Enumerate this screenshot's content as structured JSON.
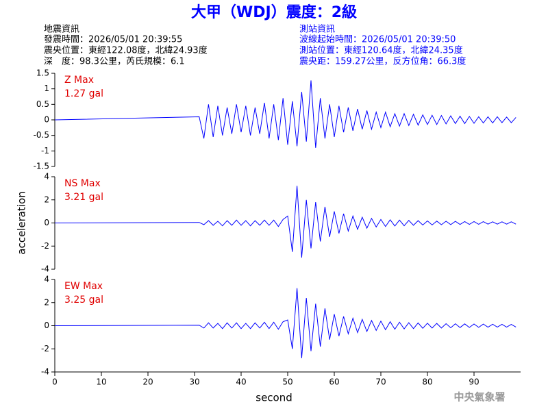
{
  "header": {
    "title": "大甲（WDJ）震度：2級",
    "left": [
      "地震資訊",
      "發震時間：2026/05/01 20:39:55",
      "震央位置：東經122.08度，北緯24.93度",
      "深　度：98.3公里，芮氏規模：6.1"
    ],
    "right": [
      "測站資訊",
      "波線起始時間：2026/05/01 20:39:50",
      "測站位置：東經120.64度，北緯24.35度",
      "震央距：159.27公里，反方位角：66.3度"
    ],
    "footer": "中央氣象署"
  },
  "chart_data": [
    {
      "type": "line",
      "annotation": "Z Max",
      "max_label": "1.27 gal",
      "color": "#0000ff",
      "ylim": [
        -1.5,
        1.5
      ],
      "yticks": [
        1.5,
        1,
        0.5,
        0,
        -0.5,
        -1,
        -1.5
      ],
      "xlim": [
        0,
        100
      ],
      "x": [
        0,
        31,
        32,
        33,
        34,
        35,
        36,
        37,
        38,
        39,
        40,
        41,
        42,
        43,
        44,
        45,
        46,
        47,
        48,
        49,
        50,
        51,
        52,
        53,
        54,
        55,
        56,
        57,
        58,
        59,
        60,
        61,
        62,
        63,
        64,
        65,
        66,
        67,
        68,
        69,
        70,
        71,
        72,
        73,
        74,
        75,
        76,
        77,
        78,
        79,
        80,
        81,
        82,
        83,
        84,
        85,
        86,
        87,
        88,
        89,
        90,
        91,
        92,
        93,
        94,
        95,
        96,
        97,
        98,
        99
      ],
      "values": [
        0,
        0.1,
        -0.6,
        0.5,
        -0.55,
        0.45,
        -0.5,
        0.4,
        -0.45,
        0.5,
        -0.4,
        0.45,
        -0.5,
        0.4,
        -0.45,
        0.55,
        -0.6,
        0.5,
        -0.65,
        0.7,
        -0.8,
        0.6,
        -0.85,
        0.9,
        -0.7,
        1.27,
        -0.9,
        0.7,
        -0.6,
        0.5,
        -0.55,
        0.45,
        -0.4,
        0.4,
        -0.35,
        0.35,
        -0.3,
        0.3,
        -0.3,
        0.25,
        -0.25,
        0.25,
        -0.22,
        0.2,
        -0.2,
        0.2,
        -0.18,
        0.18,
        -0.17,
        0.16,
        -0.15,
        0.15,
        -0.15,
        0.14,
        -0.13,
        0.13,
        -0.12,
        0.12,
        -0.12,
        0.11,
        -0.11,
        0.1,
        -0.1,
        0.1,
        -0.1,
        0.1,
        -0.09,
        0.09,
        -0.09,
        0.08
      ]
    },
    {
      "type": "line",
      "annotation": "NS Max",
      "max_label": "3.21 gal",
      "color": "#0000ff",
      "ylabel": "acceleration",
      "ylim": [
        -4,
        4
      ],
      "yticks": [
        4,
        2,
        0,
        -2,
        -4
      ],
      "xlim": [
        0,
        100
      ],
      "x": [
        0,
        31,
        32,
        33,
        34,
        35,
        36,
        37,
        38,
        39,
        40,
        41,
        42,
        43,
        44,
        45,
        46,
        47,
        48,
        49,
        50,
        51,
        52,
        53,
        54,
        55,
        56,
        57,
        58,
        59,
        60,
        61,
        62,
        63,
        64,
        65,
        66,
        67,
        68,
        69,
        70,
        71,
        72,
        73,
        74,
        75,
        76,
        77,
        78,
        79,
        80,
        81,
        82,
        83,
        84,
        85,
        86,
        87,
        88,
        89,
        90,
        91,
        92,
        93,
        94,
        95,
        96,
        97,
        98,
        99
      ],
      "values": [
        0,
        0.05,
        -0.15,
        0.2,
        -0.2,
        0.15,
        -0.25,
        0.2,
        -0.2,
        0.25,
        -0.2,
        0.2,
        -0.25,
        0.2,
        -0.2,
        0.25,
        -0.2,
        0.25,
        -0.3,
        0.3,
        0.6,
        -2.5,
        3.21,
        -3.0,
        2.0,
        -2.2,
        1.8,
        -1.6,
        1.4,
        -1.2,
        1.0,
        -0.9,
        0.8,
        -0.7,
        0.6,
        -0.55,
        0.5,
        -0.45,
        0.4,
        -0.35,
        0.3,
        -0.3,
        0.28,
        -0.26,
        0.25,
        -0.24,
        0.22,
        -0.2,
        0.2,
        -0.18,
        0.18,
        -0.17,
        0.16,
        -0.15,
        0.15,
        -0.14,
        0.14,
        -0.13,
        0.12,
        -0.12,
        0.12,
        -0.11,
        0.11,
        -0.1,
        0.1,
        -0.1,
        0.1,
        -0.1,
        0.1,
        -0.1
      ]
    },
    {
      "type": "line",
      "annotation": "EW Max",
      "max_label": "3.25 gal",
      "color": "#0000ff",
      "xlabel": "second",
      "ylim": [
        -4,
        4
      ],
      "yticks": [
        4,
        2,
        0,
        -2,
        -4
      ],
      "xlim": [
        0,
        100
      ],
      "xticks": [
        0,
        10,
        20,
        30,
        40,
        50,
        60,
        70,
        80,
        90
      ],
      "x": [
        0,
        31,
        32,
        33,
        34,
        35,
        36,
        37,
        38,
        39,
        40,
        41,
        42,
        43,
        44,
        45,
        46,
        47,
        48,
        49,
        50,
        51,
        52,
        53,
        54,
        55,
        56,
        57,
        58,
        59,
        60,
        61,
        62,
        63,
        64,
        65,
        66,
        67,
        68,
        69,
        70,
        71,
        72,
        73,
        74,
        75,
        76,
        77,
        78,
        79,
        80,
        81,
        82,
        83,
        84,
        85,
        86,
        87,
        88,
        89,
        90,
        91,
        92,
        93,
        94,
        95,
        96,
        97,
        98,
        99
      ],
      "values": [
        0,
        0.05,
        -0.2,
        0.25,
        -0.2,
        0.2,
        -0.25,
        0.25,
        -0.2,
        0.25,
        -0.25,
        0.2,
        -0.25,
        0.25,
        -0.2,
        0.3,
        -0.25,
        0.3,
        -0.3,
        0.35,
        0.5,
        -2.0,
        3.25,
        -2.8,
        2.4,
        -2.2,
        1.9,
        -1.8,
        1.5,
        -1.2,
        1.0,
        -0.9,
        0.8,
        -0.7,
        0.65,
        -0.6,
        0.55,
        -0.5,
        0.45,
        -0.4,
        0.4,
        -0.35,
        0.35,
        -0.3,
        0.3,
        -0.28,
        0.26,
        -0.25,
        0.24,
        -0.22,
        0.22,
        -0.2,
        0.2,
        -0.2,
        0.18,
        -0.18,
        0.17,
        -0.16,
        0.16,
        -0.15,
        0.15,
        -0.14,
        0.14,
        -0.13,
        0.13,
        -0.12,
        0.12,
        -0.12,
        0.11,
        -0.11
      ]
    }
  ]
}
